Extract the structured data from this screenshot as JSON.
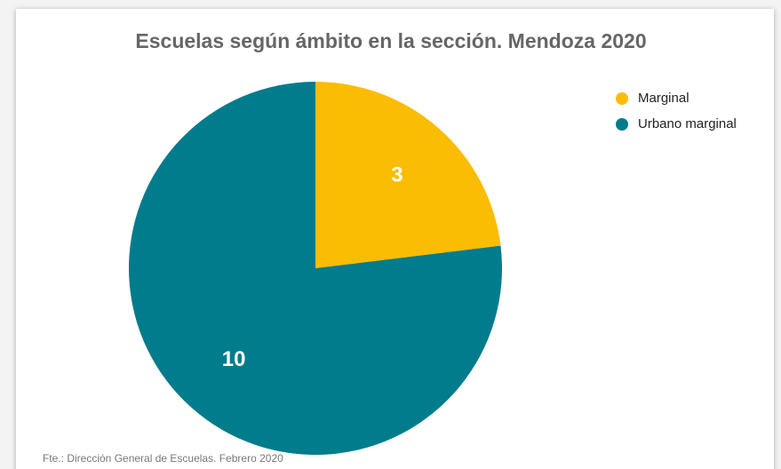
{
  "chart_data": {
    "type": "pie",
    "title": "Escuelas según ámbito en la sección. Mendoza 2020",
    "categories": [
      "Marginal",
      "Urbano marginal"
    ],
    "values": [
      3,
      10
    ],
    "colors": [
      "#fbbc04",
      "#007c8c"
    ],
    "legend": "top-right",
    "source": "Fte.: Dirección General de Escuelas. Febrero 2020"
  }
}
